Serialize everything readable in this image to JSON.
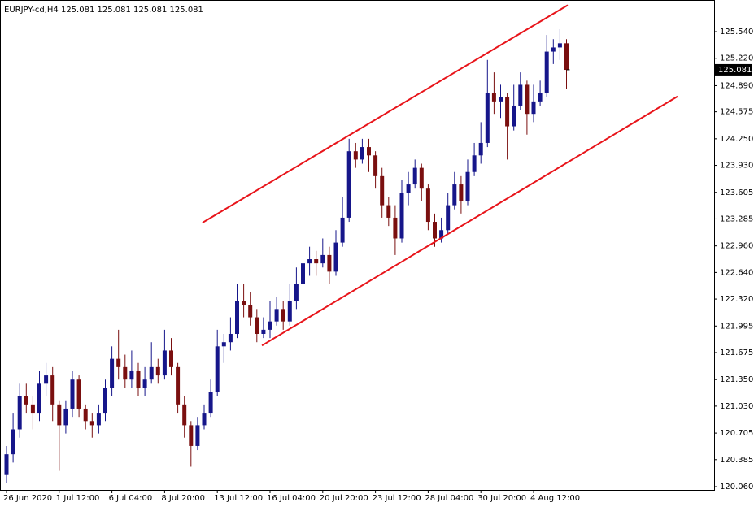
{
  "chart_data": {
    "type": "candlestick",
    "title": "EURJPY-cd,H4  125.081 125.081 125.081 125.081",
    "categories": [
      "26 Jun 2020",
      null,
      null,
      null,
      null,
      null,
      null,
      null,
      "1 Jul 12:00",
      null,
      null,
      null,
      null,
      null,
      null,
      null,
      "6 Jul 04:00",
      null,
      null,
      null,
      null,
      null,
      null,
      null,
      "8 Jul 20:00",
      null,
      null,
      null,
      null,
      null,
      null,
      null,
      "13 Jul 12:00",
      null,
      null,
      null,
      null,
      null,
      null,
      null,
      "16 Jul 04:00",
      null,
      null,
      null,
      null,
      null,
      null,
      null,
      "20 Jul 20:00",
      null,
      null,
      null,
      null,
      null,
      null,
      null,
      "23 Jul 12:00",
      null,
      null,
      null,
      null,
      null,
      null,
      null,
      "28 Jul 04:00",
      null,
      null,
      null,
      null,
      null,
      null,
      null,
      "30 Jul 20:00",
      null,
      null,
      null,
      null,
      null,
      null,
      null,
      "4 Aug 12:00",
      null,
      null,
      null,
      null,
      null
    ],
    "open": [
      120.2,
      120.45,
      120.75,
      121.15,
      121.05,
      120.95,
      121.3,
      121.4,
      121.05,
      120.8,
      121.0,
      121.35,
      121.0,
      120.85,
      120.8,
      120.95,
      121.25,
      121.6,
      121.5,
      121.35,
      121.45,
      121.25,
      121.35,
      121.5,
      121.4,
      121.7,
      121.5,
      121.05,
      120.8,
      120.55,
      120.8,
      120.95,
      121.2,
      121.75,
      121.8,
      121.9,
      122.3,
      122.25,
      122.1,
      121.9,
      121.95,
      122.05,
      122.2,
      122.05,
      122.3,
      122.5,
      122.75,
      122.8,
      122.75,
      122.85,
      122.65,
      123.0,
      123.3,
      124.1,
      124.0,
      124.15,
      124.05,
      123.8,
      123.45,
      123.3,
      123.05,
      123.6,
      123.7,
      123.9,
      123.65,
      123.25,
      123.05,
      123.15,
      123.45,
      123.7,
      123.5,
      123.85,
      124.05,
      124.2,
      124.8,
      124.7,
      124.75,
      124.4,
      124.65,
      124.9,
      124.55,
      124.7,
      124.8,
      125.3,
      125.35,
      125.4
    ],
    "high": [
      120.55,
      120.95,
      121.3,
      121.3,
      121.15,
      121.45,
      121.55,
      121.5,
      121.1,
      121.1,
      121.45,
      121.4,
      121.05,
      120.95,
      121.05,
      121.35,
      121.75,
      121.95,
      121.65,
      121.7,
      121.55,
      121.5,
      121.8,
      121.6,
      121.95,
      121.85,
      121.55,
      121.15,
      120.85,
      120.9,
      121.05,
      121.35,
      121.95,
      121.9,
      122.1,
      122.5,
      122.5,
      122.4,
      122.2,
      122.1,
      122.3,
      122.35,
      122.3,
      122.5,
      122.7,
      122.9,
      122.95,
      122.9,
      123.05,
      122.95,
      123.15,
      123.55,
      124.25,
      124.2,
      124.25,
      124.25,
      124.1,
      123.9,
      123.55,
      123.45,
      123.75,
      123.85,
      124.0,
      123.95,
      123.7,
      123.35,
      123.3,
      123.6,
      123.85,
      123.8,
      124.0,
      124.2,
      124.45,
      125.2,
      125.05,
      124.9,
      124.8,
      124.9,
      125.05,
      124.95,
      124.9,
      124.95,
      125.5,
      125.45,
      125.57,
      125.45
    ],
    "low": [
      120.1,
      120.35,
      120.65,
      120.95,
      120.75,
      120.85,
      121.15,
      120.85,
      120.25,
      120.7,
      120.9,
      120.9,
      120.75,
      120.65,
      120.7,
      120.85,
      121.15,
      121.35,
      121.25,
      121.25,
      121.15,
      121.15,
      121.3,
      121.3,
      121.35,
      121.4,
      120.95,
      120.65,
      120.3,
      120.5,
      120.75,
      120.9,
      121.15,
      121.55,
      121.7,
      121.85,
      122.1,
      122.0,
      121.8,
      121.85,
      121.85,
      122.0,
      121.95,
      122.0,
      122.2,
      122.45,
      122.6,
      122.6,
      122.7,
      122.5,
      122.6,
      122.95,
      123.25,
      123.9,
      123.95,
      123.85,
      123.65,
      123.3,
      123.2,
      122.85,
      123.0,
      123.45,
      123.65,
      123.5,
      123.15,
      122.95,
      123.0,
      123.1,
      123.4,
      123.35,
      123.45,
      123.8,
      123.95,
      124.15,
      124.55,
      124.5,
      124.0,
      124.35,
      124.6,
      124.3,
      124.45,
      124.65,
      124.75,
      125.15,
      125.2,
      124.85
    ],
    "close": [
      120.45,
      120.75,
      121.15,
      121.05,
      120.95,
      121.3,
      121.4,
      121.05,
      120.8,
      121.0,
      121.35,
      121.0,
      120.85,
      120.8,
      120.95,
      121.25,
      121.6,
      121.5,
      121.35,
      121.45,
      121.25,
      121.35,
      121.5,
      121.4,
      121.7,
      121.5,
      121.05,
      120.8,
      120.55,
      120.8,
      120.95,
      121.2,
      121.75,
      121.8,
      121.9,
      122.3,
      122.25,
      122.1,
      121.9,
      121.95,
      122.05,
      122.2,
      122.05,
      122.3,
      122.5,
      122.75,
      122.8,
      122.75,
      122.85,
      122.65,
      123.0,
      123.3,
      124.1,
      124.0,
      124.15,
      124.05,
      123.8,
      123.45,
      123.3,
      123.05,
      123.6,
      123.7,
      123.9,
      123.65,
      123.25,
      123.05,
      123.15,
      123.45,
      123.7,
      123.5,
      123.85,
      124.05,
      124.2,
      124.8,
      124.7,
      124.75,
      124.4,
      124.65,
      124.9,
      124.55,
      124.7,
      124.8,
      125.3,
      125.35,
      125.4,
      125.08
    ],
    "up_color": "#16168a",
    "down_color": "#7a0f0f",
    "ylim": [
      120.021,
      125.922
    ],
    "yticks": [
      {
        "value": 125.54,
        "label": "125.540"
      },
      {
        "value": 125.22,
        "label": "125.220"
      },
      {
        "value": 124.89,
        "label": "124.890"
      },
      124.575,
      {
        "value": 124.25,
        "label": "124.250"
      },
      {
        "value": 123.93,
        "label": "123.930"
      },
      123.605,
      123.285,
      {
        "value": 122.96,
        "label": "122.960"
      },
      {
        "value": 122.64,
        "label": "122.640"
      },
      {
        "value": 122.32,
        "label": "122.320"
      },
      121.995,
      121.675,
      {
        "value": 121.35,
        "label": "121.350"
      },
      {
        "value": 121.03,
        "label": "121.030"
      },
      120.705,
      120.385,
      {
        "value": 120.06,
        "label": "120.060"
      }
    ],
    "last_price": {
      "value": 125.081,
      "label": "125.081"
    },
    "grid": false,
    "trendlines": [
      {
        "color": "#e8141a",
        "x": [
          29.75,
          85.19
        ],
        "y": [
          123.24,
          125.86
        ]
      },
      {
        "color": "#e8141a",
        "x": [
          38.77,
          101.85
        ],
        "y": [
          121.76,
          124.76
        ]
      }
    ]
  }
}
